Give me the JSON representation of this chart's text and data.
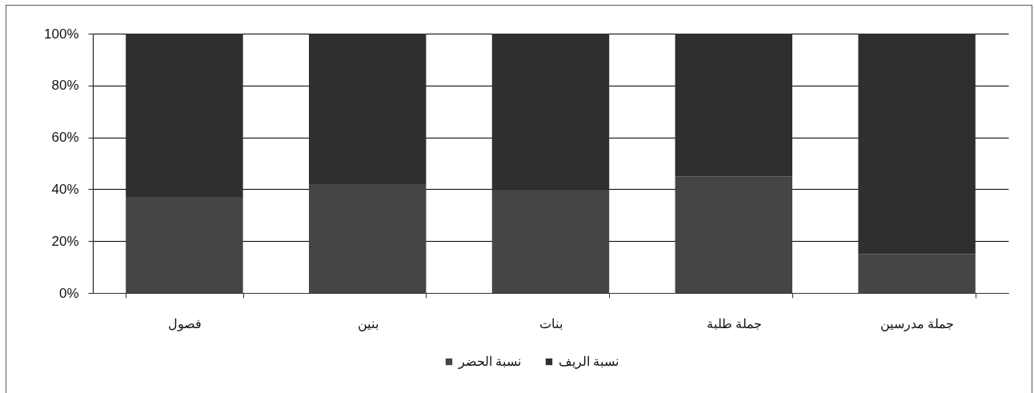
{
  "chart_data": {
    "type": "bar",
    "stacked": true,
    "categories": [
      "فصول",
      "بنين",
      "بنات",
      "جملة طلبة",
      "جملة مدرسين"
    ],
    "series": [
      {
        "name": "نسبة الحضر",
        "color": "#454545",
        "values": [
          37,
          42,
          40,
          45,
          15
        ]
      },
      {
        "name": "نسبة الريف",
        "color": "#2f2f2f",
        "values": [
          63,
          58,
          60,
          55,
          85
        ]
      }
    ],
    "ylim": [
      0,
      100
    ],
    "yticks": [
      {
        "value": 0,
        "label": "0%"
      },
      {
        "value": 20,
        "label": "20%"
      },
      {
        "value": 40,
        "label": "40%"
      },
      {
        "value": 60,
        "label": "60%"
      },
      {
        "value": 80,
        "label": "80%"
      },
      {
        "value": 100,
        "label": "100%"
      }
    ],
    "grid": "y",
    "legend": "bottom"
  }
}
